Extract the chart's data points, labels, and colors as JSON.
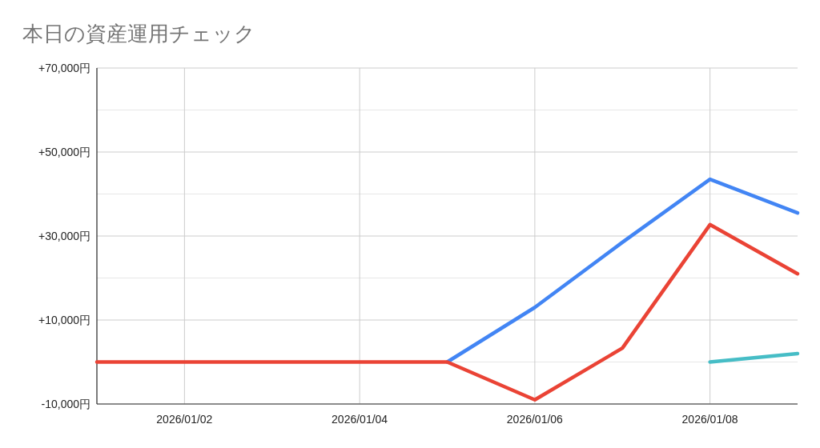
{
  "chart_data": {
    "type": "line",
    "title": "本日の資産運用チェック",
    "x": [
      "2026-01-01",
      "2026-01-02",
      "2026-01-03",
      "2026-01-04",
      "2026-01-05",
      "2026-01-06",
      "2026-01-07",
      "2026-01-08",
      "2026-01-09"
    ],
    "series": [
      {
        "color": "#4285f4",
        "values": [
          null,
          null,
          null,
          null,
          0,
          13000,
          28500,
          43500,
          35500
        ]
      },
      {
        "color": "#ea4335",
        "values": [
          0,
          0,
          0,
          0,
          0,
          -9000,
          3300,
          32700,
          21000
        ]
      },
      {
        "color": "#46bdc6",
        "values": [
          null,
          null,
          null,
          null,
          null,
          null,
          null,
          0,
          2000
        ]
      }
    ],
    "xlim": [
      "2026-01-01",
      "2026-01-09"
    ],
    "xticks": [
      {
        "value": "2026-01-02",
        "label": "2026/01/02"
      },
      {
        "value": "2026-01-04",
        "label": "2026/01/04"
      },
      {
        "value": "2026-01-06",
        "label": "2026/01/06"
      },
      {
        "value": "2026-01-08",
        "label": "2026/01/08"
      }
    ],
    "ylim": [
      -10000,
      70000
    ],
    "yticks": [
      {
        "value": -10000,
        "label": "-10,000円"
      },
      {
        "value": 0,
        "label": null
      },
      {
        "value": 10000,
        "label": "+10,000円"
      },
      {
        "value": 20000,
        "label": null
      },
      {
        "value": 30000,
        "label": "+30,000円"
      },
      {
        "value": 40000,
        "label": null
      },
      {
        "value": 50000,
        "label": "+50,000円"
      },
      {
        "value": 60000,
        "label": null
      },
      {
        "value": 70000,
        "label": "+70,000円"
      }
    ],
    "grid": true,
    "marker": "none",
    "line_style": "solid"
  }
}
